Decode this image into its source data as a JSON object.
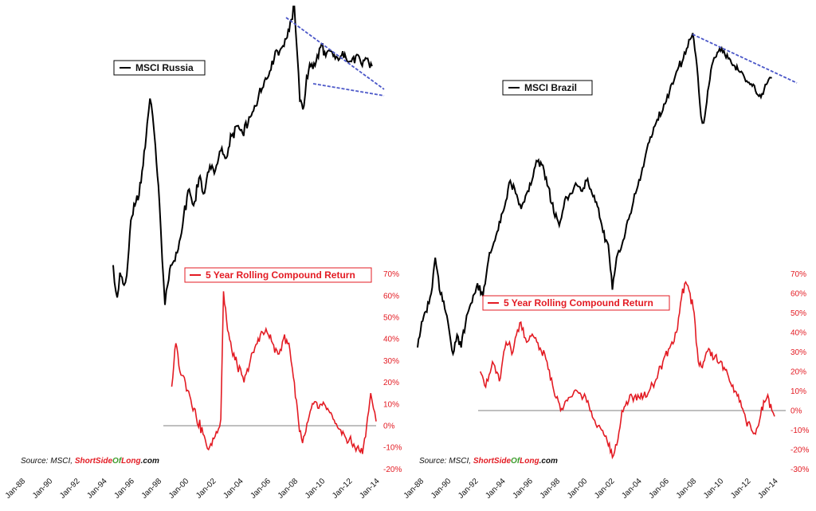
{
  "colors": {
    "price_line": "#000000",
    "return_line": "#e31b23",
    "trendline": "#4a56c8",
    "zero_line": "#555555",
    "brand_red": "#e31b23",
    "brand_green": "#3b9c2b"
  },
  "chart_data": [
    {
      "id": "russia",
      "type": "line",
      "x_tick_labels": [
        "Jan-88",
        "Jan-90",
        "Jan-92",
        "Jan-94",
        "Jan-96",
        "Jan-98",
        "Jan-00",
        "Jan-02",
        "Jan-04",
        "Jan-06",
        "Jan-08",
        "Jan-10",
        "Jan-12",
        "Jan-14"
      ],
      "price_legend": "MSCI Russia",
      "return_legend": "5 Year Rolling Compound Return",
      "return_axis_ticks": [
        "70%",
        "60%",
        "50%",
        "40%",
        "30%",
        "20%",
        "10%",
        "0%",
        "-10%",
        "-20%"
      ],
      "return_ylim": [
        -20,
        70
      ],
      "price_anchors": [
        [
          1994.9,
          0.2
        ],
        [
          1995.0,
          0.13
        ],
        [
          1995.2,
          0.07
        ],
        [
          1995.4,
          0.17
        ],
        [
          1995.7,
          0.12
        ],
        [
          1995.9,
          0.16
        ],
        [
          1996.2,
          0.38
        ],
        [
          1996.5,
          0.44
        ],
        [
          1996.8,
          0.48
        ],
        [
          1997.1,
          0.6
        ],
        [
          1997.4,
          0.77
        ],
        [
          1997.6,
          0.87
        ],
        [
          1997.8,
          0.8
        ],
        [
          1998.0,
          0.68
        ],
        [
          1998.3,
          0.45
        ],
        [
          1998.5,
          0.22
        ],
        [
          1998.7,
          0.04
        ],
        [
          1998.9,
          0.12
        ],
        [
          1999.2,
          0.2
        ],
        [
          1999.6,
          0.25
        ],
        [
          2000.0,
          0.36
        ],
        [
          2000.4,
          0.5
        ],
        [
          2000.8,
          0.44
        ],
        [
          2001.2,
          0.55
        ],
        [
          2001.6,
          0.49
        ],
        [
          2002.0,
          0.6
        ],
        [
          2002.4,
          0.58
        ],
        [
          2002.8,
          0.66
        ],
        [
          2003.2,
          0.63
        ],
        [
          2003.6,
          0.72
        ],
        [
          2004.0,
          0.76
        ],
        [
          2004.4,
          0.73
        ],
        [
          2004.8,
          0.77
        ],
        [
          2005.2,
          0.82
        ],
        [
          2005.6,
          0.89
        ],
        [
          2006.0,
          0.94
        ],
        [
          2006.4,
          0.98
        ],
        [
          2006.8,
          1.06
        ],
        [
          2007.2,
          1.07
        ],
        [
          2007.6,
          1.11
        ],
        [
          2007.9,
          1.18
        ],
        [
          2008.2,
          1.24
        ],
        [
          2008.4,
          1.06
        ],
        [
          2008.6,
          0.86
        ],
        [
          2008.9,
          0.84
        ],
        [
          2009.1,
          0.96
        ],
        [
          2009.4,
          1.0
        ],
        [
          2009.8,
          1.02
        ],
        [
          2010.2,
          1.09
        ],
        [
          2010.5,
          1.04
        ],
        [
          2010.9,
          1.06
        ],
        [
          2011.2,
          1.03
        ],
        [
          2011.6,
          1.04
        ],
        [
          2011.9,
          1.05
        ],
        [
          2012.3,
          1.02
        ],
        [
          2012.7,
          1.04
        ],
        [
          2013.1,
          1.01
        ],
        [
          2013.5,
          1.03
        ],
        [
          2013.9,
          1.0
        ]
      ],
      "return_anchors": [
        [
          1999.2,
          18
        ],
        [
          1999.5,
          38
        ],
        [
          1999.8,
          25
        ],
        [
          2000.2,
          20
        ],
        [
          2000.6,
          12
        ],
        [
          2001.0,
          4
        ],
        [
          2001.5,
          -4
        ],
        [
          2001.9,
          -11
        ],
        [
          2002.3,
          -6
        ],
        [
          2002.8,
          3
        ],
        [
          2003.0,
          62
        ],
        [
          2003.3,
          44
        ],
        [
          2003.6,
          35
        ],
        [
          2004.0,
          28
        ],
        [
          2004.5,
          20
        ],
        [
          2004.9,
          28
        ],
        [
          2005.3,
          36
        ],
        [
          2005.7,
          42
        ],
        [
          2006.2,
          43
        ],
        [
          2006.6,
          38
        ],
        [
          2007.0,
          33
        ],
        [
          2007.4,
          40
        ],
        [
          2007.8,
          38
        ],
        [
          2008.2,
          20
        ],
        [
          2008.5,
          2
        ],
        [
          2008.8,
          -8
        ],
        [
          2009.2,
          2
        ],
        [
          2009.6,
          10
        ],
        [
          2010.0,
          8
        ],
        [
          2010.4,
          10
        ],
        [
          2010.8,
          6
        ],
        [
          2011.2,
          1
        ],
        [
          2011.6,
          -2
        ],
        [
          2012.0,
          -6
        ],
        [
          2012.4,
          -8
        ],
        [
          2012.8,
          -10
        ],
        [
          2013.2,
          -13
        ],
        [
          2013.5,
          0
        ],
        [
          2013.8,
          15
        ],
        [
          2014.0,
          8
        ],
        [
          2014.2,
          2
        ]
      ]
    },
    {
      "id": "brazil",
      "type": "line",
      "x_tick_labels": [
        "Jan-88",
        "Jan-90",
        "Jan-92",
        "Jan-94",
        "Jan-96",
        "Jan-98",
        "Jan-00",
        "Jan-02",
        "Jan-04",
        "Jan-06",
        "Jan-08",
        "Jan-10",
        "Jan-12",
        "Jan-14"
      ],
      "price_legend": "MSCI Brazil",
      "return_legend": "5 Year Rolling Compound Return",
      "return_axis_ticks": [
        "70%",
        "60%",
        "50%",
        "40%",
        "30%",
        "20%",
        "10%",
        "0%",
        "-10%",
        "-20%",
        "-30%"
      ],
      "return_ylim": [
        -30,
        70
      ],
      "price_anchors": [
        [
          1988.0,
          0.1
        ],
        [
          1988.3,
          0.3
        ],
        [
          1988.6,
          0.38
        ],
        [
          1989.0,
          0.52
        ],
        [
          1989.3,
          0.8
        ],
        [
          1989.6,
          0.55
        ],
        [
          1990.0,
          0.4
        ],
        [
          1990.3,
          0.25
        ],
        [
          1990.6,
          0.05
        ],
        [
          1990.9,
          0.2
        ],
        [
          1991.2,
          0.1
        ],
        [
          1991.6,
          0.35
        ],
        [
          1992.0,
          0.45
        ],
        [
          1992.4,
          0.6
        ],
        [
          1992.8,
          0.5
        ],
        [
          1993.2,
          0.78
        ],
        [
          1993.6,
          0.92
        ],
        [
          1994.0,
          1.08
        ],
        [
          1994.4,
          1.2
        ],
        [
          1994.8,
          1.4
        ],
        [
          1995.2,
          1.3
        ],
        [
          1995.6,
          1.18
        ],
        [
          1996.0,
          1.3
        ],
        [
          1996.4,
          1.4
        ],
        [
          1996.8,
          1.55
        ],
        [
          1997.2,
          1.52
        ],
        [
          1997.6,
          1.35
        ],
        [
          1998.0,
          1.15
        ],
        [
          1998.4,
          1.05
        ],
        [
          1998.8,
          1.25
        ],
        [
          1999.2,
          1.3
        ],
        [
          1999.6,
          1.38
        ],
        [
          2000.0,
          1.32
        ],
        [
          2000.4,
          1.4
        ],
        [
          2000.8,
          1.3
        ],
        [
          2001.2,
          1.2
        ],
        [
          2001.6,
          1.0
        ],
        [
          2002.0,
          0.9
        ],
        [
          2002.3,
          0.55
        ],
        [
          2002.6,
          0.8
        ],
        [
          2003.0,
          0.9
        ],
        [
          2003.5,
          1.1
        ],
        [
          2004.0,
          1.3
        ],
        [
          2004.5,
          1.5
        ],
        [
          2005.0,
          1.7
        ],
        [
          2005.5,
          1.85
        ],
        [
          2006.0,
          1.95
        ],
        [
          2006.5,
          2.1
        ],
        [
          2007.0,
          2.25
        ],
        [
          2007.5,
          2.35
        ],
        [
          2008.0,
          2.5
        ],
        [
          2008.2,
          2.55
        ],
        [
          2008.5,
          2.3
        ],
        [
          2008.8,
          1.9
        ],
        [
          2009.0,
          1.85
        ],
        [
          2009.3,
          2.1
        ],
        [
          2009.6,
          2.3
        ],
        [
          2010.0,
          2.4
        ],
        [
          2010.4,
          2.4
        ],
        [
          2010.8,
          2.35
        ],
        [
          2011.2,
          2.3
        ],
        [
          2011.6,
          2.25
        ],
        [
          2012.0,
          2.2
        ],
        [
          2012.4,
          2.15
        ],
        [
          2012.8,
          2.1
        ],
        [
          2013.2,
          2.05
        ],
        [
          2013.6,
          2.15
        ],
        [
          2014.0,
          2.2
        ]
      ],
      "return_anchors": [
        [
          1992.6,
          20
        ],
        [
          1993.0,
          12
        ],
        [
          1993.5,
          25
        ],
        [
          1994.0,
          15
        ],
        [
          1994.5,
          35
        ],
        [
          1995.0,
          30
        ],
        [
          1995.5,
          45
        ],
        [
          1996.0,
          35
        ],
        [
          1996.5,
          38
        ],
        [
          1997.0,
          32
        ],
        [
          1997.5,
          25
        ],
        [
          1998.0,
          10
        ],
        [
          1998.5,
          0
        ],
        [
          1999.0,
          5
        ],
        [
          1999.5,
          10
        ],
        [
          2000.0,
          8
        ],
        [
          2000.5,
          5
        ],
        [
          2001.0,
          -5
        ],
        [
          2001.5,
          -10
        ],
        [
          2002.0,
          -18
        ],
        [
          2002.3,
          -24
        ],
        [
          2002.7,
          -15
        ],
        [
          2003.0,
          0
        ],
        [
          2003.5,
          5
        ],
        [
          2004.0,
          8
        ],
        [
          2004.5,
          6
        ],
        [
          2005.0,
          10
        ],
        [
          2005.5,
          16
        ],
        [
          2006.0,
          25
        ],
        [
          2006.5,
          32
        ],
        [
          2007.0,
          40
        ],
        [
          2007.3,
          55
        ],
        [
          2007.6,
          65
        ],
        [
          2008.0,
          60
        ],
        [
          2008.3,
          50
        ],
        [
          2008.6,
          25
        ],
        [
          2008.9,
          22
        ],
        [
          2009.2,
          30
        ],
        [
          2009.6,
          30
        ],
        [
          2010.0,
          25
        ],
        [
          2010.5,
          22
        ],
        [
          2010.9,
          15
        ],
        [
          2011.3,
          10
        ],
        [
          2011.7,
          5
        ],
        [
          2012.1,
          -5
        ],
        [
          2012.5,
          -10
        ],
        [
          2012.8,
          -12
        ],
        [
          2013.1,
          -5
        ],
        [
          2013.4,
          5
        ],
        [
          2013.7,
          8
        ],
        [
          2014.0,
          0
        ],
        [
          2014.2,
          -3
        ]
      ]
    }
  ],
  "source": {
    "prefix": "Source: MSCI, ",
    "brand_part1": "ShortSide",
    "brand_part2": "Of",
    "brand_part3": "Long",
    "brand_suffix": ".com"
  }
}
